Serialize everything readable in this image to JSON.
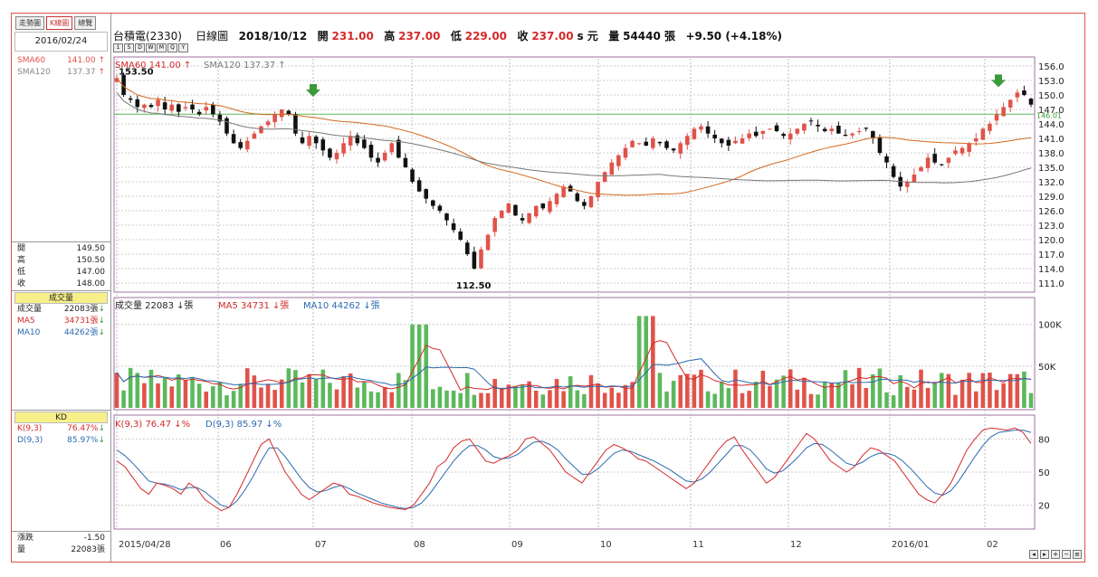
{
  "tabs": [
    "走勢圖",
    "K線圖",
    "總覽"
  ],
  "side_date": "2016/02/24",
  "sma": [
    {
      "label": "SMA60",
      "value": "141.00",
      "color": "#e0534a"
    },
    {
      "label": "SMA120",
      "value": "137.37",
      "color": "#888888"
    }
  ],
  "ohlc": [
    {
      "label": "開",
      "value": "149.50"
    },
    {
      "label": "高",
      "value": "150.50"
    },
    {
      "label": "低",
      "value": "147.00"
    },
    {
      "label": "收",
      "value": "148.00"
    }
  ],
  "volume_side": {
    "title": "成交量",
    "rows": [
      {
        "label": "成交量",
        "value": "22083張",
        "color": "#222222"
      },
      {
        "label": "MA5",
        "value": "34731張",
        "color": "#d42a2a"
      },
      {
        "label": "MA10",
        "value": "44262張",
        "color": "#2a6ab0"
      }
    ]
  },
  "kd_side": {
    "title": "KD",
    "rows": [
      {
        "label": "K(9,3)",
        "value": "76.47%",
        "color": "#d42a2a"
      },
      {
        "label": "D(9,3)",
        "value": "85.97%",
        "color": "#2a6ab0"
      }
    ]
  },
  "bottom_side": [
    {
      "label": "漲跌",
      "value": "-1.50"
    },
    {
      "label": "量",
      "value": "22083張"
    }
  ],
  "header": {
    "name": "台積電(2330)",
    "period": "日線圖",
    "date": "2018/10/12",
    "open_label": "開",
    "open": "231.00",
    "high_label": "高",
    "high": "237.00",
    "low_label": "低",
    "low": "229.00",
    "close_label": "收",
    "close": "237.00",
    "unit": "s 元",
    "vol_label": "量",
    "vol": "54440 張",
    "change": "+9.50 (+4.18%)"
  },
  "toolbar_icons": [
    "1",
    "5",
    "D",
    "W",
    "M",
    "Q",
    "Y"
  ],
  "price_legend": {
    "sma60": "SMA60 141.00",
    "sma120": "SMA120 137.37"
  },
  "vol_legend": {
    "vol": "成交量 22083",
    "ma5": "MA5 34731",
    "ma10": "MA10 44262",
    "unit": "張"
  },
  "kd_legend": {
    "k": "K(9,3) 76.47",
    "d": "D(9,3) 85.97",
    "unit": "%"
  },
  "colors": {
    "up": "#e0534a",
    "down": "#111111",
    "vol_up": "#e0534a",
    "vol_down": "#5cb85c",
    "sma60": "#d2691e",
    "sma120": "#777777",
    "k": "#d42a2a",
    "d": "#2a6ab0"
  },
  "chart_data": {
    "type": "candlestick",
    "x_labels": [
      "2015/04/28",
      "06",
      "07",
      "08",
      "09",
      "10",
      "11",
      "12",
      "2016/01",
      "02"
    ],
    "price_ticks": [
      "156.0",
      "153.0",
      "150.0",
      "147.0",
      "144.0",
      "141.0",
      "138.0",
      "135.0",
      "132.0",
      "129.0",
      "126.0",
      "123.0",
      "120.0",
      "117.0",
      "114.0",
      "111.0"
    ],
    "price_range": [
      109.5,
      157.5
    ],
    "annotations": {
      "high": "153.50",
      "low": "112.50",
      "ref_line": "146.01",
      "ref_value": 146.01
    },
    "volume_ticks": [
      "100K",
      "50K"
    ],
    "volume_range": [
      0,
      130000
    ],
    "kd_ticks": [
      "80",
      "50",
      "20"
    ],
    "kd_range": [
      0,
      100
    ],
    "price_path": [
      153.5,
      150,
      149,
      147.5,
      148,
      147.5,
      149,
      147,
      148,
      146.5,
      147.5,
      147,
      146,
      147.5,
      146,
      144.5,
      142,
      140,
      139,
      140.5,
      142,
      143.5,
      144.5,
      146,
      147,
      146,
      142,
      140,
      141.5,
      140,
      138.5,
      137,
      138,
      140,
      141.5,
      140,
      139,
      137,
      136,
      138,
      140,
      137,
      135,
      132,
      130,
      128.5,
      127,
      126,
      124,
      122,
      120,
      117,
      114,
      118,
      121,
      124.5,
      126,
      127.5,
      125,
      124,
      125.5,
      127,
      126.5,
      128,
      129.5,
      131,
      130,
      128,
      127,
      129,
      132,
      134,
      136,
      137.5,
      139,
      140.5,
      140,
      139.5,
      141,
      140,
      139,
      138.5,
      140,
      141.5,
      143,
      143.5,
      142,
      141,
      140,
      139.5,
      140.5,
      141,
      142,
      141.5,
      142.5,
      143,
      142.5,
      141.5,
      142,
      143,
      144,
      144.5,
      143.5,
      142.5,
      143,
      142,
      141.5,
      142,
      142.5,
      143,
      141,
      138,
      136,
      133,
      131,
      132,
      133.5,
      135,
      137,
      136,
      135.5,
      137,
      138.5,
      139,
      140,
      141,
      143,
      144,
      146,
      147.5,
      149,
      150.5,
      150,
      148
    ],
    "volume_base": 30000,
    "volume_peak": [
      {
        "pos": 0.33,
        "value": 100000
      },
      {
        "pos": 0.58,
        "value": 110000
      }
    ],
    "k_path": [
      60,
      55,
      45,
      35,
      30,
      40,
      38,
      35,
      30,
      40,
      35,
      25,
      20,
      15,
      18,
      30,
      45,
      60,
      75,
      80,
      65,
      50,
      40,
      30,
      25,
      30,
      35,
      40,
      38,
      30,
      28,
      25,
      22,
      20,
      18,
      17,
      16,
      20,
      30,
      40,
      55,
      60,
      72,
      78,
      80,
      70,
      60,
      58,
      62,
      65,
      70,
      80,
      82,
      76,
      70,
      60,
      50,
      45,
      40,
      50,
      60,
      70,
      75,
      72,
      68,
      62,
      60,
      55,
      50,
      45,
      40,
      35,
      40,
      50,
      60,
      70,
      78,
      82,
      70,
      60,
      50,
      40,
      45,
      55,
      65,
      75,
      85,
      80,
      70,
      60,
      55,
      50,
      55,
      65,
      72,
      70,
      65,
      60,
      50,
      40,
      30,
      25,
      22,
      30,
      40,
      55,
      70,
      80,
      88,
      90,
      89,
      88,
      90,
      86,
      76
    ],
    "d_path": [
      70,
      65,
      58,
      50,
      42,
      40,
      39,
      37,
      34,
      36,
      36,
      32,
      26,
      20,
      18,
      24,
      34,
      46,
      60,
      72,
      72,
      64,
      54,
      44,
      36,
      32,
      33,
      36,
      38,
      35,
      31,
      28,
      25,
      22,
      20,
      18,
      17,
      18,
      22,
      30,
      40,
      50,
      60,
      68,
      74,
      74,
      70,
      64,
      62,
      63,
      66,
      72,
      77,
      78,
      75,
      70,
      62,
      55,
      48,
      48,
      53,
      60,
      67,
      70,
      69,
      66,
      63,
      60,
      56,
      52,
      47,
      42,
      41,
      44,
      50,
      58,
      66,
      74,
      74,
      70,
      62,
      53,
      49,
      51,
      57,
      64,
      72,
      76,
      75,
      70,
      64,
      58,
      56,
      59,
      64,
      67,
      67,
      65,
      60,
      53,
      45,
      37,
      31,
      29,
      33,
      42,
      53,
      64,
      74,
      82,
      86,
      87,
      88,
      88,
      86
    ]
  }
}
